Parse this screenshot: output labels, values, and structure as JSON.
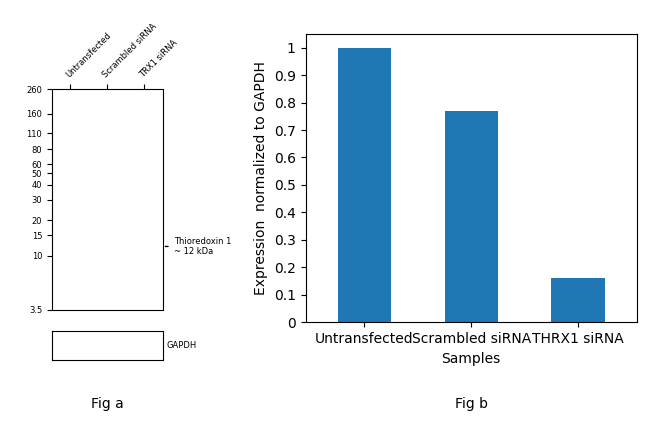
{
  "chart_data": [
    {
      "type": "blot",
      "categories": [
        "Untransfected",
        "Scrambled siRNA",
        "TRX1 siRNA"
      ],
      "log": "y",
      "ylim": [
        3.5,
        260
      ],
      "yticks": [
        260,
        160,
        110,
        80,
        60,
        50,
        40,
        30,
        20,
        15,
        10,
        3.5
      ],
      "annotations": [
        {
          "text": "Thioredoxin 1\n~ 12 kDa",
          "y": 12
        }
      ],
      "control_label": "GAPDH",
      "caption": "Fig a"
    },
    {
      "type": "bar",
      "categories": [
        "Untransfected",
        "Scrambled siRNA",
        "THRX1 siRNA"
      ],
      "values": [
        1.0,
        0.77,
        0.16
      ],
      "xlabel": "Samples",
      "ylabel": "Expression  normalized to GAPDH",
      "ylim": [
        0,
        1.05
      ],
      "yticks": [
        0,
        0.1,
        0.2,
        0.3,
        0.4,
        0.5,
        0.6,
        0.7,
        0.8,
        0.9,
        1
      ],
      "caption": "Fig b"
    }
  ]
}
